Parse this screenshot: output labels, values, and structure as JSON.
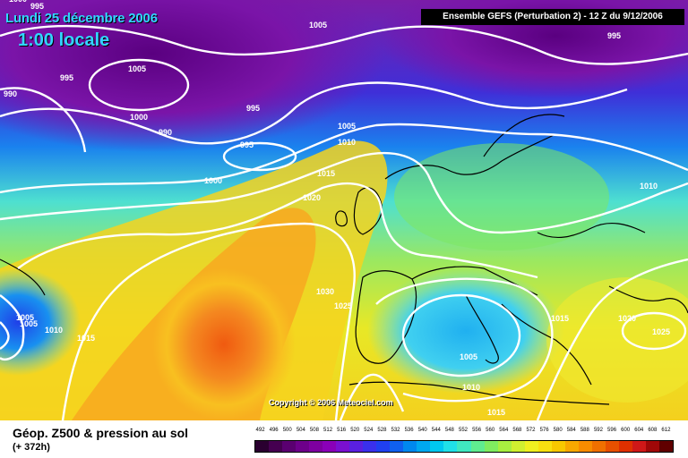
{
  "header": {
    "date": "Lundi 25 décembre 2006",
    "local_time": "1:00 locale",
    "run_info": "Ensemble GEFS (Perturbation 2)  -  12 Z du 9/12/2006"
  },
  "copyright": "Copyright © 2006 Meteociel.com",
  "footer": {
    "title": "Géop. Z500 & pression au sol",
    "lead": "(+ 372h)"
  },
  "scale": {
    "ticks": [
      "492",
      "496",
      "500",
      "504",
      "508",
      "512",
      "516",
      "520",
      "524",
      "528",
      "532",
      "536",
      "540",
      "544",
      "548",
      "552",
      "556",
      "560",
      "564",
      "568",
      "572",
      "576",
      "580",
      "584",
      "588",
      "592",
      "596",
      "600",
      "604",
      "608",
      "612"
    ],
    "colors": [
      "#2a0030",
      "#450050",
      "#5a0070",
      "#6d008a",
      "#7e00a0",
      "#8a00b8",
      "#7a10d0",
      "#5a20e0",
      "#3a30ec",
      "#2040f0",
      "#1060ee",
      "#0088ee",
      "#00a8f0",
      "#00c8f0",
      "#20e0e8",
      "#40e8c0",
      "#60ec90",
      "#80ec60",
      "#a8ee40",
      "#d0f030",
      "#f0f020",
      "#f8e010",
      "#f8c800",
      "#f8a800",
      "#f88c00",
      "#f07000",
      "#e85000",
      "#e03000",
      "#d01818",
      "#a00808",
      "#600000"
    ]
  },
  "isobar_labels": [
    "995",
    "1000",
    "1005",
    "990",
    "995",
    "1005",
    "995",
    "1000",
    "990",
    "995",
    "1005",
    "1010",
    "1015",
    "1020",
    "1000",
    "1010",
    "1030",
    "1025",
    "1005",
    "1010",
    "1015",
    "1005",
    "1010",
    "1015",
    "1020",
    "1025",
    "1015",
    "995",
    "1005"
  ],
  "map_layers": {
    "background_gradient": "purple-to-orange geopotential field",
    "contours": "white isobar lines",
    "coastlines": "black"
  }
}
